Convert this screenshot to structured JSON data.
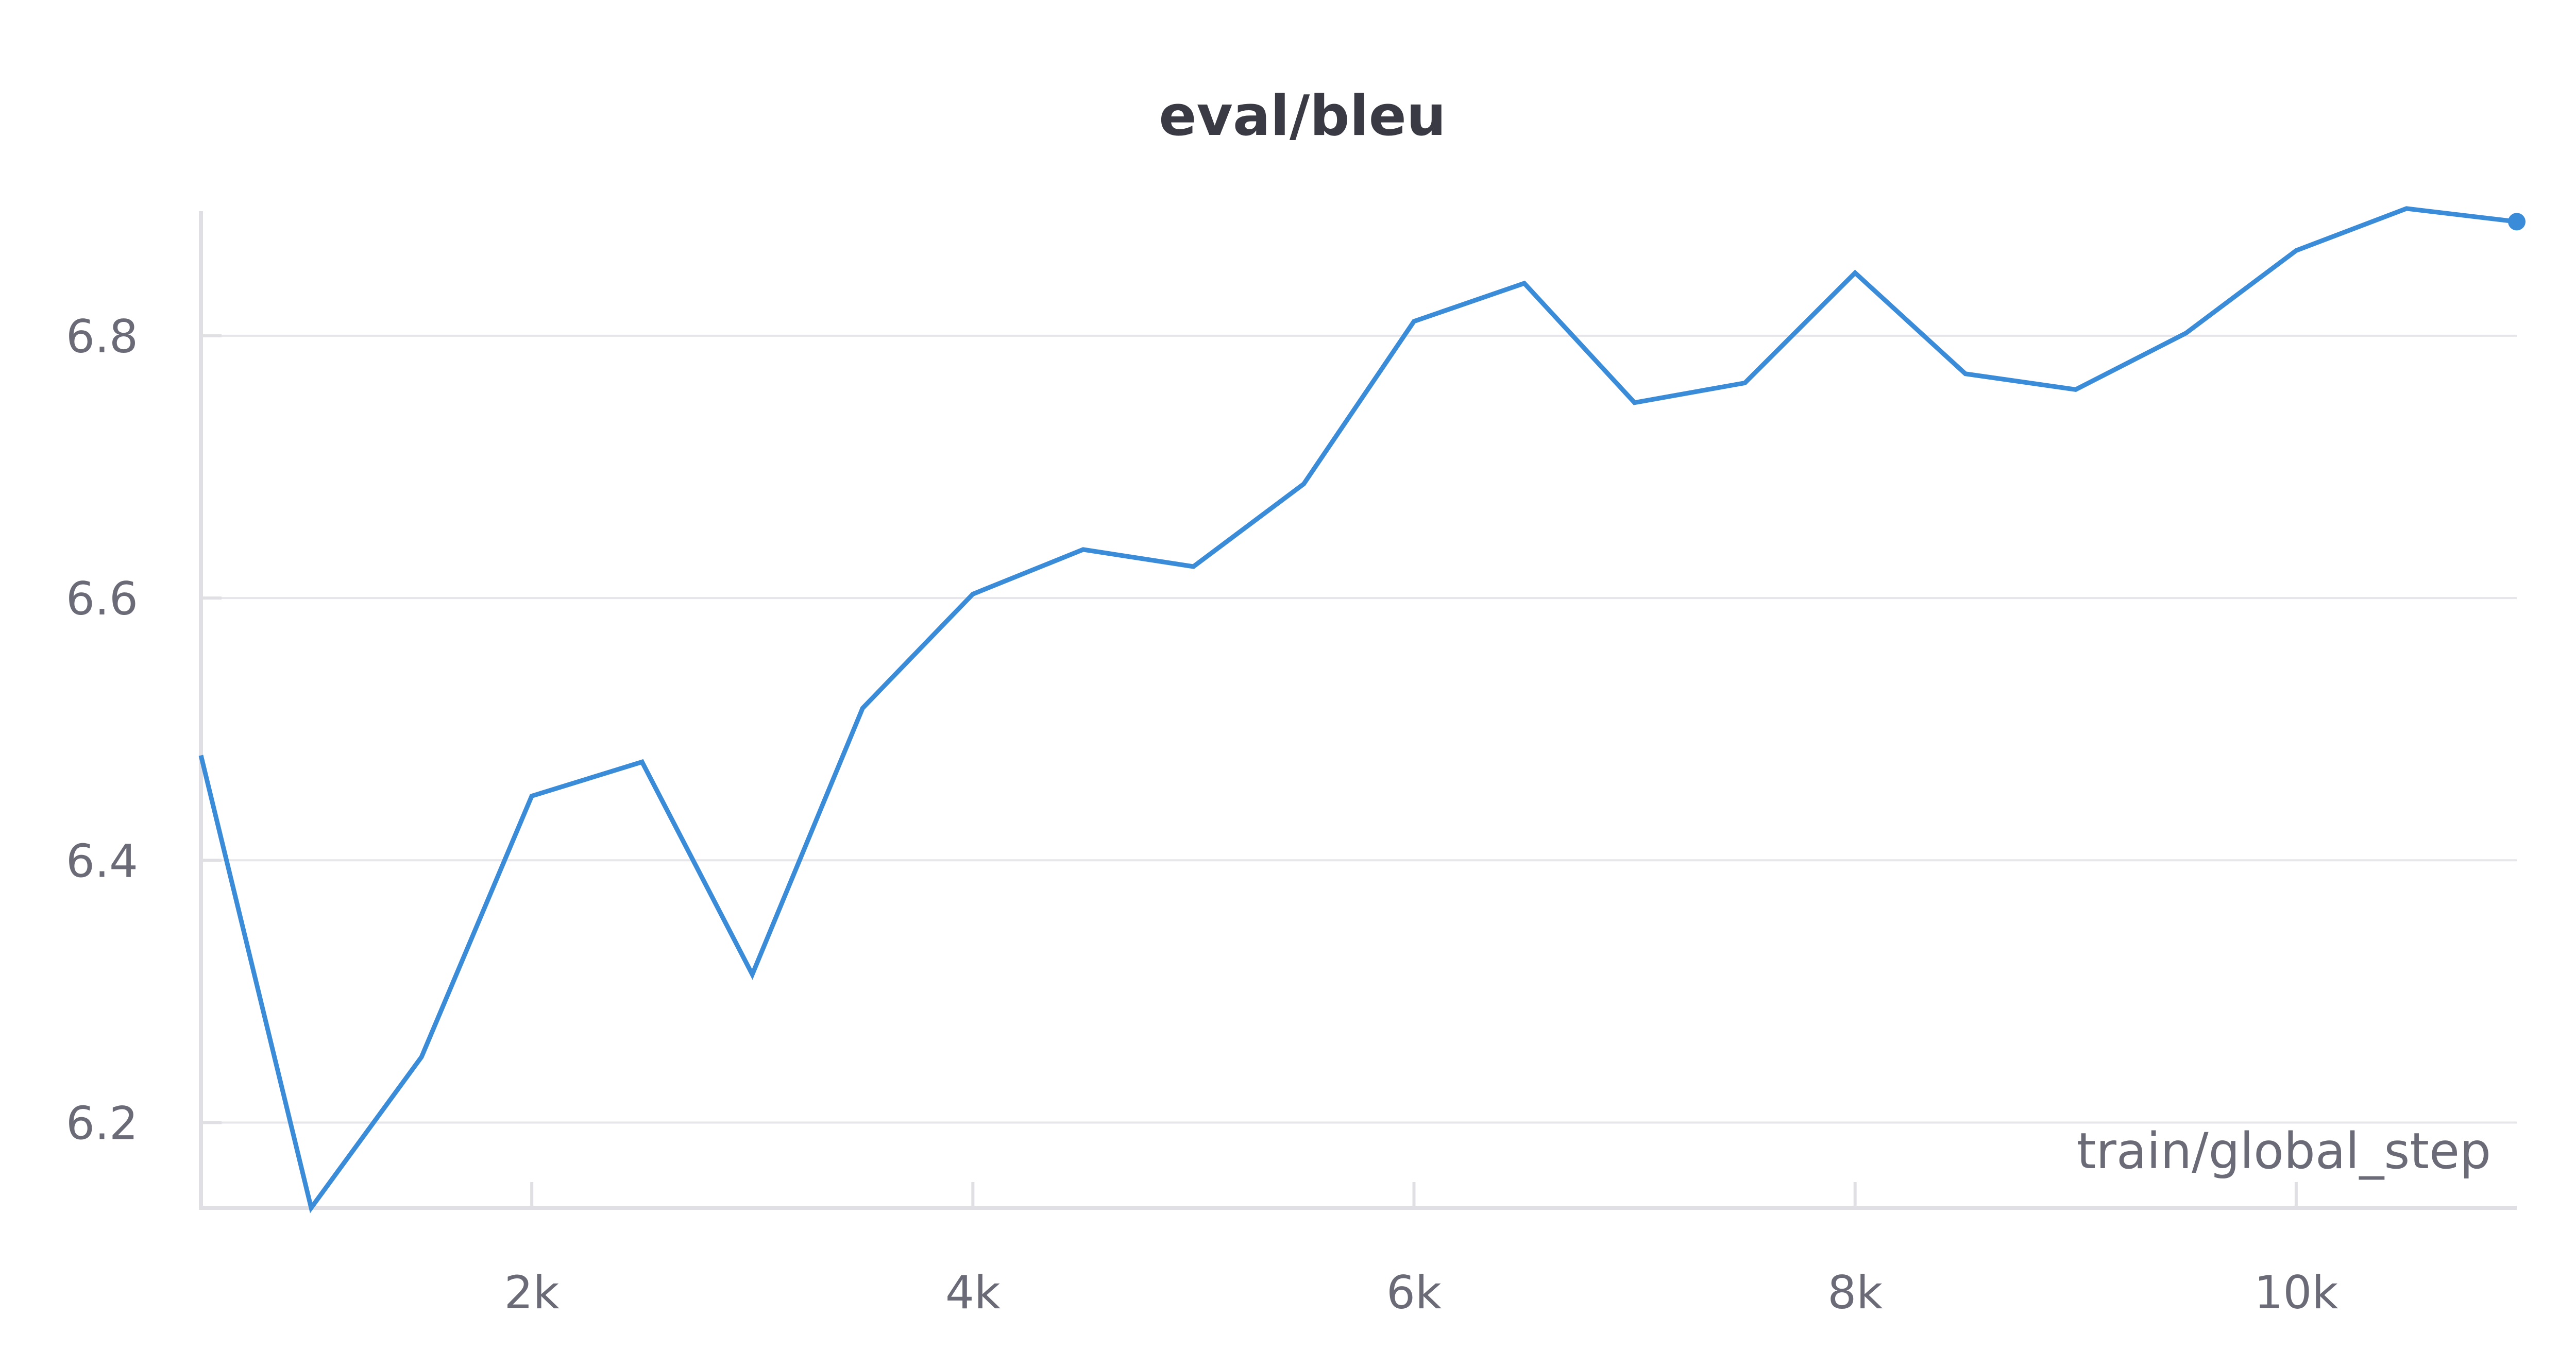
{
  "chart_data": {
    "type": "line",
    "title": "eval/bleu",
    "xlabel": "train/global_step",
    "ylabel": "",
    "xlim": [
      500,
      11000
    ],
    "ylim": [
      6.135,
      6.895
    ],
    "x_ticks": [
      {
        "value": 2000,
        "label": "2k"
      },
      {
        "value": 4000,
        "label": "4k"
      },
      {
        "value": 6000,
        "label": "6k"
      },
      {
        "value": 8000,
        "label": "8k"
      },
      {
        "value": 10000,
        "label": "10k"
      }
    ],
    "y_ticks": [
      {
        "value": 6.2,
        "label": "6.2"
      },
      {
        "value": 6.4,
        "label": "6.4"
      },
      {
        "value": 6.6,
        "label": "6.6"
      },
      {
        "value": 6.8,
        "label": "6.8"
      }
    ],
    "grid": "horizontal",
    "series": [
      {
        "color": "#3b8cd8",
        "x": [
          500,
          1000,
          1500,
          2000,
          2500,
          3000,
          3500,
          4000,
          4500,
          5000,
          5500,
          6000,
          6500,
          7000,
          7500,
          8000,
          8500,
          9000,
          9500,
          10000,
          10500,
          11000
        ],
        "y": [
          6.48,
          6.135,
          6.25,
          6.449,
          6.475,
          6.313,
          6.516,
          6.603,
          6.637,
          6.624,
          6.687,
          6.811,
          6.84,
          6.749,
          6.764,
          6.848,
          6.771,
          6.759,
          6.802,
          6.865,
          6.897,
          6.887
        ]
      }
    ]
  }
}
